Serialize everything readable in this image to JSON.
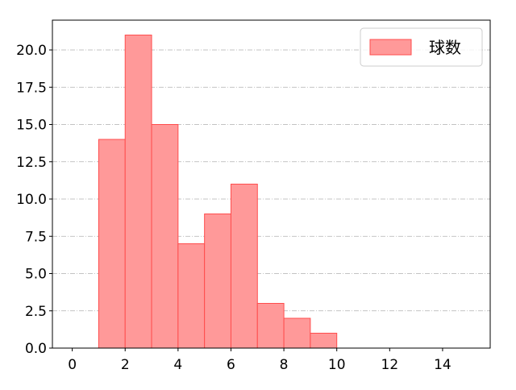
{
  "chart_data": {
    "type": "bar",
    "subtype": "histogram",
    "bins": [
      [
        1,
        2
      ],
      [
        2,
        3
      ],
      [
        3,
        4
      ],
      [
        4,
        5
      ],
      [
        5,
        6
      ],
      [
        6,
        7
      ],
      [
        7,
        8
      ],
      [
        8,
        9
      ],
      [
        9,
        10
      ]
    ],
    "series": [
      {
        "name": "球数",
        "values": [
          14,
          21,
          15,
          7,
          9,
          11,
          3,
          2,
          1
        ]
      }
    ],
    "title": "",
    "xlabel": "",
    "ylabel": "",
    "xlim": [
      -0.75,
      15.8
    ],
    "ylim": [
      0,
      22
    ],
    "xticks": [
      0,
      2,
      4,
      6,
      8,
      10,
      12,
      14
    ],
    "xtick_labels": [
      "0",
      "2",
      "4",
      "6",
      "8",
      "10",
      "12",
      "14"
    ],
    "yticks": [
      0,
      2.5,
      5,
      7.5,
      10,
      12.5,
      15,
      17.5,
      20
    ],
    "ytick_labels": [
      "0.0",
      "2.5",
      "5.0",
      "7.5",
      "10.0",
      "12.5",
      "15.0",
      "17.5",
      "20.0"
    ],
    "grid": "y-axis, dash-dot, gray",
    "legend_position": "top-right",
    "colors": {
      "bar_fill": "#ff9999",
      "bar_edge": "#ff4d4d",
      "grid": "#b0b0b0"
    }
  }
}
